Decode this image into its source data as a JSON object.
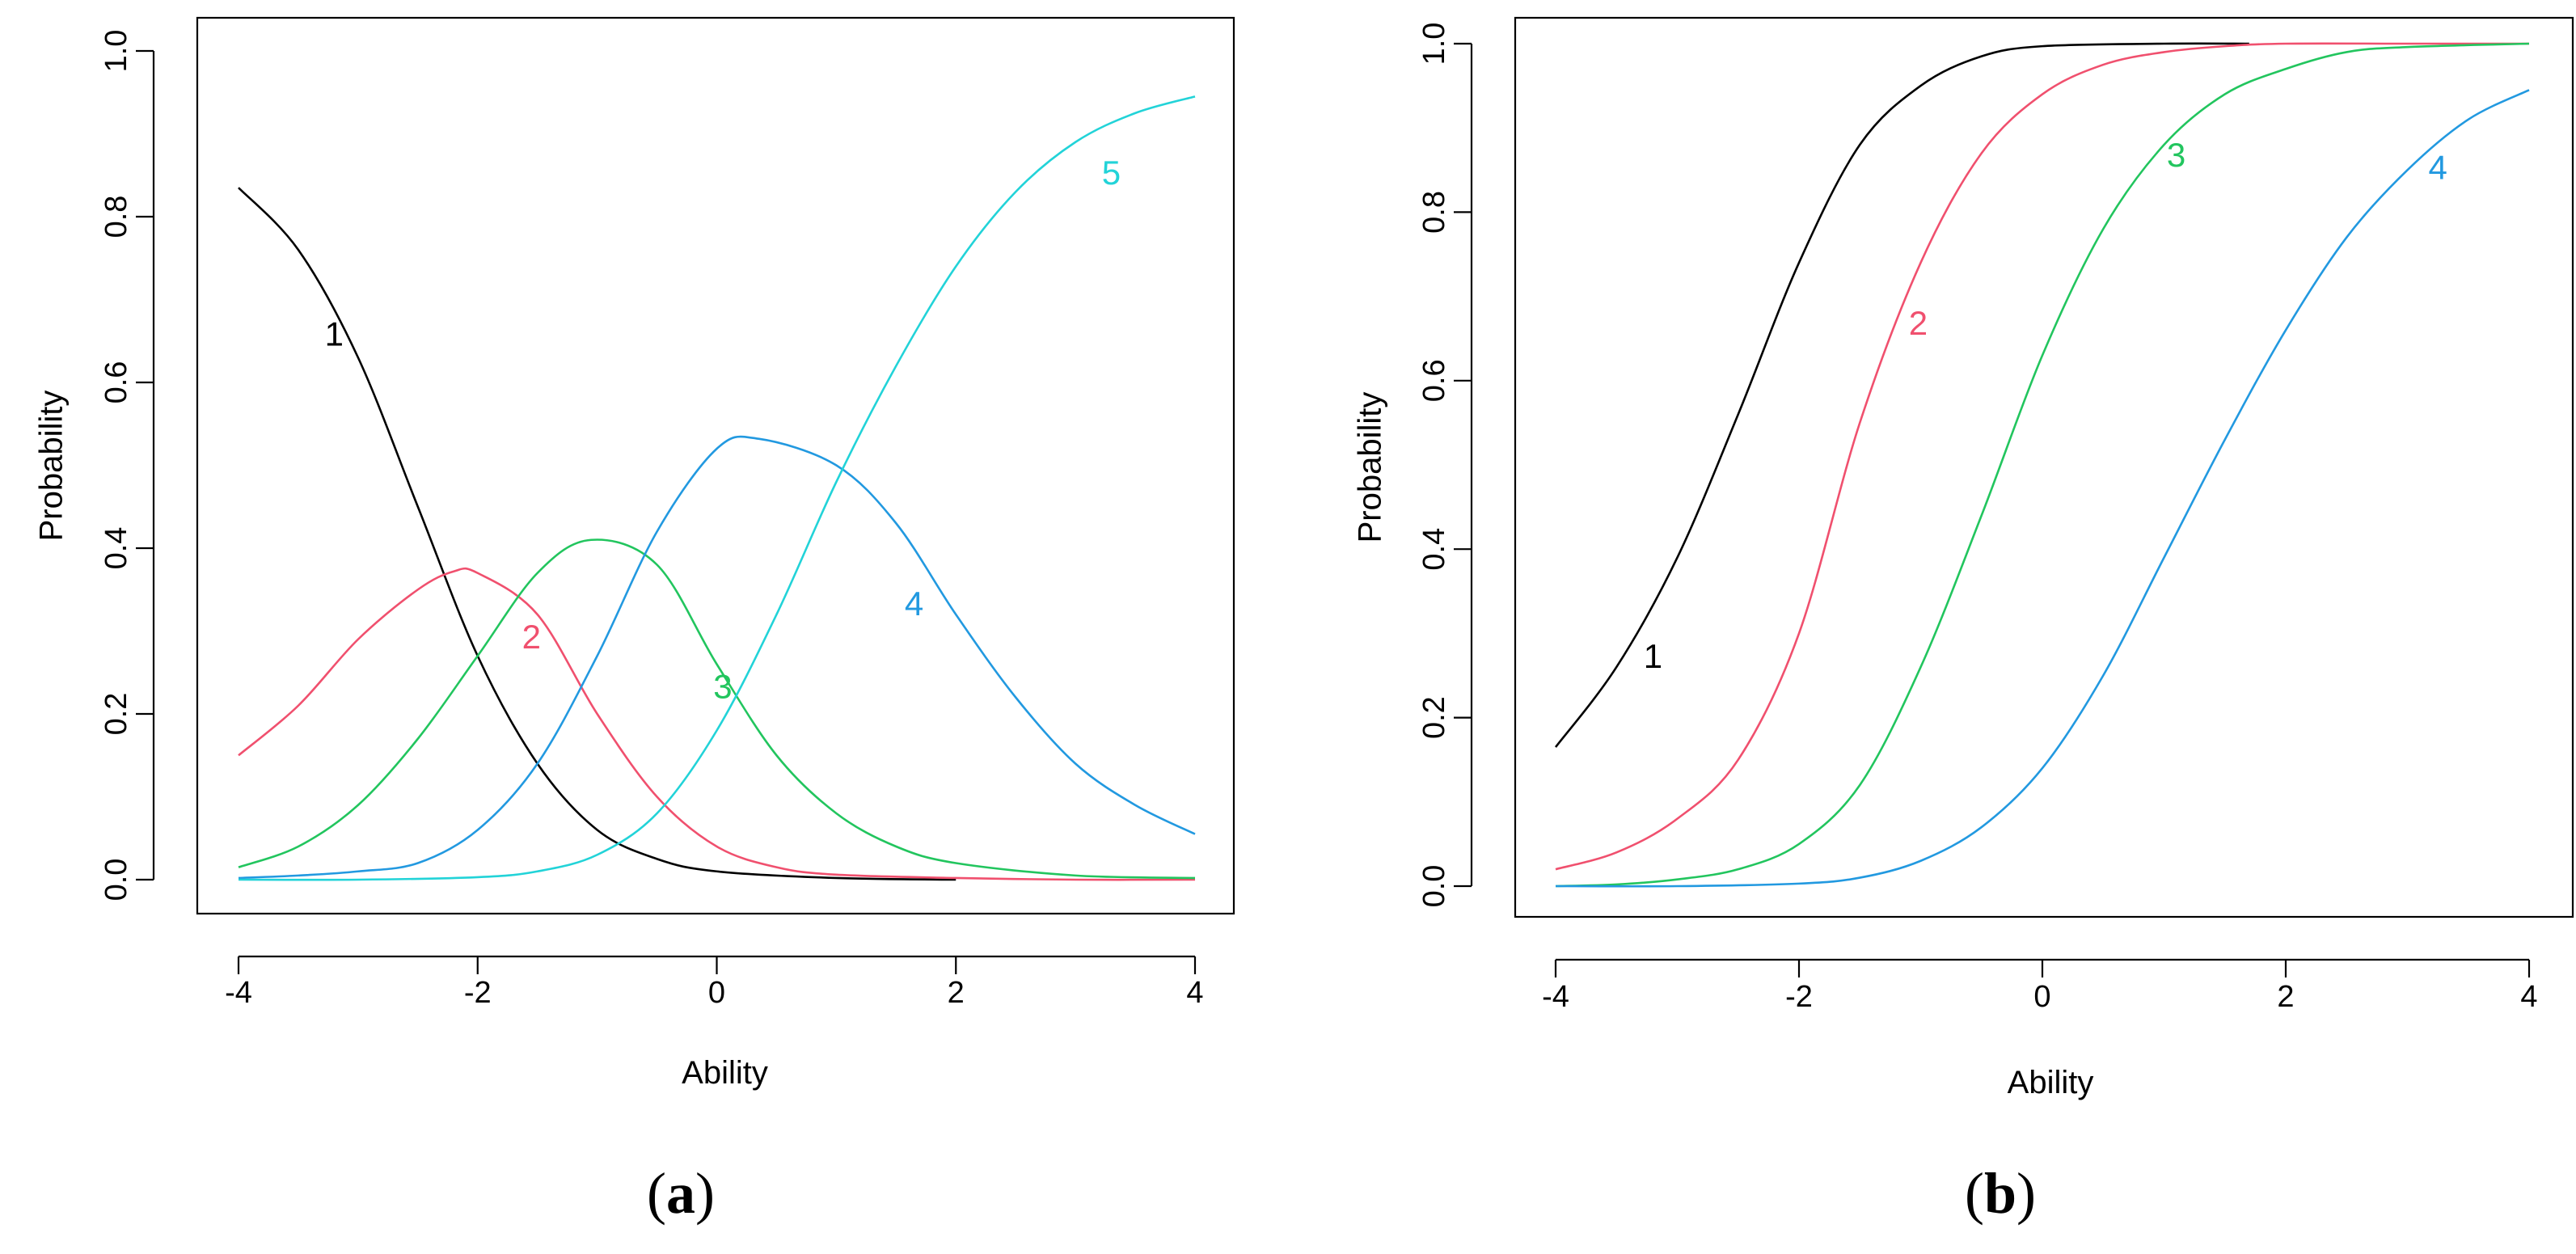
{
  "chart_data": [
    {
      "panel": "a",
      "caption_letter": "a",
      "type": "line",
      "title": "",
      "xlabel": "Ability",
      "ylabel": "Probability",
      "xlim": [
        -4,
        4
      ],
      "ylim": [
        0,
        1.0
      ],
      "xticks": [
        "-4",
        "-2",
        "0",
        "2",
        "4"
      ],
      "yticks": [
        "0.0",
        "0.2",
        "0.4",
        "0.6",
        "0.8",
        "1.0"
      ],
      "grid": false,
      "legend": "none",
      "series": [
        {
          "name": "1",
          "color": "#000000",
          "x": [
            -4,
            -3.5,
            -3,
            -2.5,
            -2,
            -1.5,
            -1,
            -0.5,
            0,
            1,
            2
          ],
          "y": [
            0.835,
            0.76,
            0.63,
            0.45,
            0.27,
            0.14,
            0.06,
            0.025,
            0.01,
            0.002,
            0.0
          ],
          "label": {
            "text": "1",
            "x": -3.2,
            "y": 0.655
          }
        },
        {
          "name": "2",
          "color": "#f0506e",
          "x": [
            -4,
            -3.5,
            -3,
            -2.5,
            -2.2,
            -2,
            -1.5,
            -1,
            -0.5,
            0,
            0.5,
            1,
            2,
            3,
            4
          ],
          "y": [
            0.15,
            0.21,
            0.29,
            0.35,
            0.372,
            0.37,
            0.32,
            0.2,
            0.1,
            0.04,
            0.015,
            0.006,
            0.002,
            0.0,
            0.0
          ],
          "label": {
            "text": "2",
            "x": -1.55,
            "y": 0.29
          }
        },
        {
          "name": "3",
          "color": "#22c55e",
          "x": [
            -4,
            -3.5,
            -3,
            -2.5,
            -2,
            -1.5,
            -1.05,
            -0.5,
            0,
            0.5,
            1,
            1.5,
            2,
            3,
            4
          ],
          "y": [
            0.015,
            0.04,
            0.09,
            0.17,
            0.27,
            0.37,
            0.41,
            0.38,
            0.26,
            0.15,
            0.08,
            0.04,
            0.02,
            0.005,
            0.002
          ],
          "label": {
            "text": "3",
            "x": 0.05,
            "y": 0.23
          }
        },
        {
          "name": "4",
          "color": "#2299e0",
          "x": [
            -4,
            -3.5,
            -3,
            -2.5,
            -2,
            -1.5,
            -1,
            -0.5,
            0,
            0.35,
            1,
            1.5,
            2,
            2.5,
            3,
            3.5,
            4
          ],
          "y": [
            0.002,
            0.005,
            0.01,
            0.02,
            0.06,
            0.14,
            0.27,
            0.42,
            0.52,
            0.532,
            0.5,
            0.43,
            0.32,
            0.22,
            0.14,
            0.09,
            0.055
          ],
          "label": {
            "text": "4",
            "x": 1.65,
            "y": 0.33
          }
        },
        {
          "name": "5",
          "color": "#22d3d8",
          "x": [
            -4,
            -3,
            -2,
            -1.5,
            -1,
            -0.5,
            0,
            0.5,
            1,
            1.5,
            2,
            2.5,
            3,
            3.5,
            4
          ],
          "y": [
            0.0,
            0.0,
            0.003,
            0.01,
            0.03,
            0.08,
            0.18,
            0.32,
            0.48,
            0.62,
            0.74,
            0.83,
            0.89,
            0.925,
            0.945
          ],
          "label": {
            "text": "5",
            "x": 3.3,
            "y": 0.85
          }
        }
      ]
    },
    {
      "panel": "b",
      "caption_letter": "b",
      "type": "line",
      "title": "",
      "xlabel": "Ability",
      "ylabel": "Probability",
      "xlim": [
        -4,
        4
      ],
      "ylim": [
        0,
        1.0
      ],
      "xticks": [
        "-4",
        "-2",
        "0",
        "2",
        "4"
      ],
      "yticks": [
        "0.0",
        "0.2",
        "0.4",
        "0.6",
        "0.8",
        "1.0"
      ],
      "grid": false,
      "legend": "none",
      "series": [
        {
          "name": "1",
          "color": "#000000",
          "x": [
            -4,
            -3.5,
            -3,
            -2.5,
            -2,
            -1.5,
            -1,
            -0.5,
            0,
            1,
            1.7
          ],
          "y": [
            0.165,
            0.26,
            0.39,
            0.56,
            0.74,
            0.88,
            0.95,
            0.985,
            0.997,
            1.0,
            1.0
          ],
          "label": {
            "text": "1",
            "x": -3.2,
            "y": 0.27
          }
        },
        {
          "name": "2",
          "color": "#f0506e",
          "x": [
            -4,
            -3.5,
            -3,
            -2.5,
            -2,
            -1.5,
            -1,
            -0.5,
            0,
            0.5,
            1,
            1.5,
            2,
            3,
            4
          ],
          "y": [
            0.02,
            0.04,
            0.08,
            0.15,
            0.3,
            0.55,
            0.74,
            0.87,
            0.94,
            0.975,
            0.99,
            0.997,
            1.0,
            1.0,
            1.0
          ],
          "label": {
            "text": "2",
            "x": -1.02,
            "y": 0.665
          }
        },
        {
          "name": "3",
          "color": "#22c55e",
          "x": [
            -4,
            -3.5,
            -3,
            -2.5,
            -2,
            -1.5,
            -1,
            -0.5,
            0,
            0.5,
            1,
            1.5,
            2,
            2.5,
            3,
            4
          ],
          "y": [
            0.0,
            0.002,
            0.008,
            0.02,
            0.05,
            0.12,
            0.26,
            0.44,
            0.63,
            0.78,
            0.88,
            0.94,
            0.97,
            0.99,
            0.996,
            1.0
          ],
          "label": {
            "text": "3",
            "x": 1.1,
            "y": 0.865
          }
        },
        {
          "name": "4",
          "color": "#2299e0",
          "x": [
            -4,
            -3,
            -2,
            -1.5,
            -1,
            -0.5,
            0,
            0.5,
            1,
            1.5,
            2,
            2.5,
            3,
            3.5,
            4
          ],
          "y": [
            0.0,
            0.0,
            0.003,
            0.01,
            0.03,
            0.07,
            0.14,
            0.25,
            0.39,
            0.53,
            0.66,
            0.77,
            0.85,
            0.91,
            0.945
          ],
          "label": {
            "text": "4",
            "x": 3.25,
            "y": 0.85
          }
        }
      ]
    }
  ]
}
